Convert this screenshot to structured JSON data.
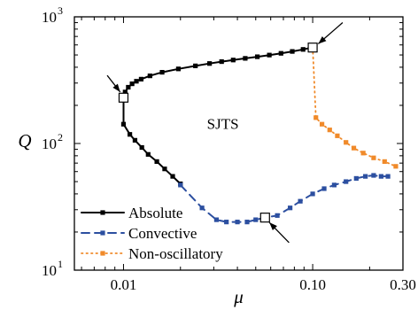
{
  "chart_data": {
    "type": "line",
    "xlabel": "μ",
    "ylabel": "Q",
    "xscale": "log",
    "yscale": "log",
    "xlim": [
      0.0055,
      0.3
    ],
    "ylim": [
      10,
      1000
    ],
    "x_tick_labels": [
      {
        "value": 0.01,
        "label": "0.01"
      },
      {
        "value": 0.1,
        "label": "0.10"
      },
      {
        "value": 0.3,
        "label": "0.30"
      }
    ],
    "y_tick_labels": [
      {
        "value": 10,
        "label": "10",
        "exp": "1"
      },
      {
        "value": 100,
        "label": "10",
        "exp": "2"
      },
      {
        "value": 1000,
        "label": "10",
        "exp": "3"
      }
    ],
    "grid": false,
    "legend_position": "bottom-left",
    "series": [
      {
        "name": "Absolute",
        "color": "#000000",
        "style": "solid",
        "marker": "square",
        "points": [
          [
            0.01,
            230
          ],
          [
            0.0102,
            255
          ],
          [
            0.0106,
            278
          ],
          [
            0.0111,
            296
          ],
          [
            0.0117,
            310
          ],
          [
            0.0124,
            322
          ],
          [
            0.0138,
            342
          ],
          [
            0.016,
            365
          ],
          [
            0.0195,
            388
          ],
          [
            0.024,
            410
          ],
          [
            0.0285,
            428
          ],
          [
            0.033,
            443
          ],
          [
            0.038,
            456
          ],
          [
            0.044,
            470
          ],
          [
            0.051,
            484
          ],
          [
            0.059,
            499
          ],
          [
            0.068,
            515
          ],
          [
            0.078,
            533
          ],
          [
            0.089,
            553
          ],
          [
            0.099,
            572
          ],
          [
            0.01,
            142
          ],
          [
            0.0108,
            118
          ],
          [
            0.0115,
            106
          ],
          [
            0.0125,
            93
          ],
          [
            0.0135,
            82
          ],
          [
            0.015,
            72
          ],
          [
            0.0165,
            63
          ],
          [
            0.0182,
            55
          ],
          [
            0.02,
            48
          ]
        ]
      },
      {
        "name": "Convective",
        "color": "#2c4fa0",
        "style": "dashed",
        "marker": "square",
        "points": [
          [
            0.02,
            47
          ],
          [
            0.026,
            31
          ],
          [
            0.031,
            25
          ],
          [
            0.035,
            24
          ],
          [
            0.04,
            24
          ],
          [
            0.045,
            24
          ],
          [
            0.05,
            25
          ],
          [
            0.056,
            26
          ],
          [
            0.065,
            27
          ],
          [
            0.076,
            31
          ],
          [
            0.086,
            35
          ],
          [
            0.1,
            40
          ],
          [
            0.115,
            44
          ],
          [
            0.13,
            47
          ],
          [
            0.15,
            50
          ],
          [
            0.17,
            53
          ],
          [
            0.19,
            55
          ],
          [
            0.21,
            56
          ],
          [
            0.23,
            55
          ],
          [
            0.25,
            55
          ]
        ]
      },
      {
        "name": "Non-oscillatory",
        "color": "#f08a2a",
        "style": "dotted",
        "marker": "square",
        "points": [
          [
            0.1,
            572
          ],
          [
            0.104,
            160
          ],
          [
            0.112,
            142
          ],
          [
            0.123,
            128
          ],
          [
            0.135,
            115
          ],
          [
            0.15,
            102
          ],
          [
            0.165,
            92
          ],
          [
            0.185,
            84
          ],
          [
            0.21,
            77
          ],
          [
            0.24,
            72
          ],
          [
            0.275,
            66
          ]
        ]
      }
    ],
    "open_markers": [
      [
        0.01,
        230
      ],
      [
        0.1,
        572
      ],
      [
        0.056,
        26
      ]
    ],
    "arrows": [
      {
        "from": [
          0.0082,
          345
        ],
        "to": [
          0.0096,
          255
        ]
      },
      {
        "from": [
          0.144,
          900
        ],
        "to": [
          0.107,
          612
        ]
      },
      {
        "from": [
          0.075,
          16.5
        ],
        "to": [
          0.059,
          23.8
        ]
      }
    ],
    "annotations": [
      {
        "text": "SJTS",
        "x": 0.0335,
        "y": 130
      }
    ]
  }
}
